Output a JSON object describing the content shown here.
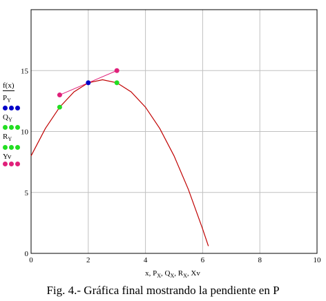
{
  "chart_data": {
    "type": "line",
    "caption": "Fig. 4.- Gráfica final mostrando la pendiente en P",
    "function_label": "f(x)",
    "xlim": [
      0,
      10
    ],
    "ylim": [
      0,
      20
    ],
    "x_ticks": [
      0,
      2,
      4,
      6,
      8,
      10
    ],
    "y_ticks": [
      0,
      5,
      10,
      15
    ],
    "grid": true,
    "legend_position": "left",
    "xlabel_parts": [
      {
        "t": "x, P",
        "s": ""
      },
      {
        "t": "",
        "s": "X"
      },
      {
        "t": ", Q",
        "s": ""
      },
      {
        "t": "",
        "s": "X"
      },
      {
        "t": ", R",
        "s": ""
      },
      {
        "t": "",
        "s": "X"
      },
      {
        "t": ", Xv",
        "s": ""
      }
    ],
    "curve": {
      "name": "f(x)",
      "color": "#c00000",
      "x": [
        0,
        0.5,
        1,
        1.5,
        2,
        2.5,
        3,
        3.5,
        4,
        4.5,
        5,
        5.5,
        6,
        6.2
      ],
      "y": [
        8,
        10.25,
        12,
        13.25,
        14,
        14.25,
        14,
        13.25,
        12,
        10.25,
        8,
        5.25,
        2,
        0.6
      ]
    },
    "series": [
      {
        "name": "P",
        "sub": "Y",
        "color": "#0000c8",
        "x": [
          2
        ],
        "y": [
          14
        ]
      },
      {
        "name": "Q",
        "sub": "Y",
        "color": "#22dd22",
        "x": [
          1,
          3
        ],
        "y": [
          12,
          14
        ]
      },
      {
        "name": "R",
        "sub": "Y",
        "color": "#22dd22",
        "x": [],
        "y": []
      },
      {
        "name": "Yv",
        "sub": "",
        "color": "#e0207a",
        "x": [
          1,
          3
        ],
        "y": [
          13,
          15
        ]
      }
    ],
    "tangent": {
      "color": "#e0207a",
      "x": [
        1,
        2,
        3
      ],
      "y": [
        13,
        14,
        15
      ]
    }
  }
}
